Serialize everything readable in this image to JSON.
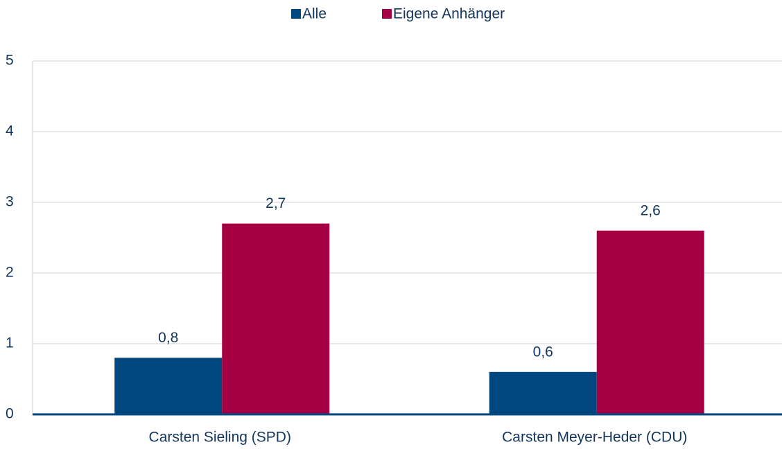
{
  "chart_data": {
    "type": "bar",
    "categories": [
      "Carsten Sieling (SPD)",
      "Carsten Meyer-Heder (CDU)"
    ],
    "series": [
      {
        "name": "Alle",
        "color": "#00477f",
        "values": [
          0.8,
          0.6
        ],
        "value_labels": [
          "0,8",
          "0,6"
        ]
      },
      {
        "name": "Eigene Anhänger",
        "color": "#a50044",
        "values": [
          2.7,
          2.6
        ],
        "value_labels": [
          "2,7",
          "2,6"
        ]
      }
    ],
    "ylim": [
      0,
      5
    ],
    "yticks": [
      0,
      1,
      2,
      3,
      4,
      5
    ],
    "grid": true,
    "legend": "top"
  }
}
